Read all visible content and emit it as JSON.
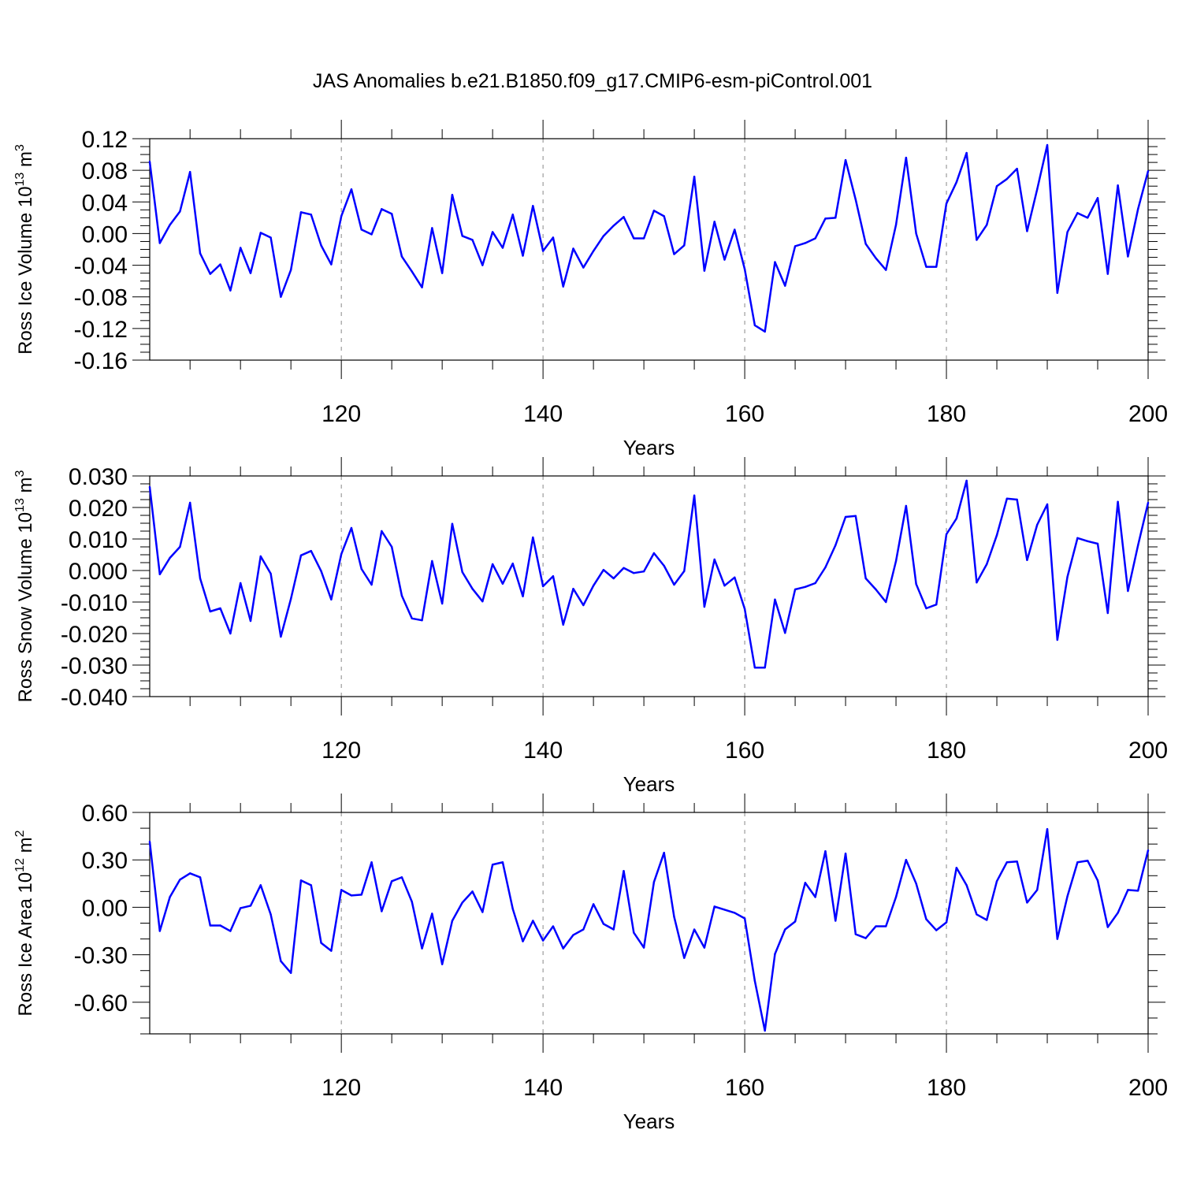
{
  "title": "JAS Anomalies b.e21.B1850.f09_g17.CMIP6-esm-piControl.001",
  "chart_data": [
    {
      "type": "line",
      "ylabel_text": "Ross Ice Volume 10",
      "ylabel_exp": "13",
      "ylabel_unit": " m",
      "ylabel_unit_exp": "3",
      "xlabel": "Years",
      "xlim": [
        101,
        200
      ],
      "ylim": [
        -0.16,
        0.12
      ],
      "yticks": [
        -0.16,
        -0.12,
        -0.08,
        -0.04,
        0.0,
        0.04,
        0.08,
        0.12
      ],
      "ytick_labels": [
        "-0.16",
        "-0.12",
        "-0.08",
        "-0.04",
        "0.00",
        "0.04",
        "0.08",
        "0.12"
      ],
      "yminor_step": 0.01,
      "xticks": [
        120,
        140,
        160,
        180,
        200
      ],
      "xtick_labels": [
        "120",
        "140",
        "160",
        "180",
        "200"
      ],
      "xminor_step": 5,
      "grid_x": true,
      "x_start": 101,
      "values": [
        0.091,
        -0.012,
        0.011,
        0.028,
        0.078,
        -0.025,
        -0.051,
        -0.039,
        -0.072,
        -0.018,
        -0.05,
        0.001,
        -0.005,
        -0.08,
        -0.046,
        0.027,
        0.024,
        -0.015,
        -0.039,
        0.022,
        0.056,
        0.005,
        -0.001,
        0.031,
        0.025,
        -0.029,
        -0.048,
        -0.068,
        0.007,
        -0.05,
        0.049,
        -0.003,
        -0.008,
        -0.04,
        0.002,
        -0.018,
        0.024,
        -0.028,
        0.035,
        -0.022,
        -0.005,
        -0.067,
        -0.019,
        -0.043,
        -0.022,
        -0.003,
        0.01,
        0.021,
        -0.006,
        -0.006,
        0.029,
        0.022,
        -0.026,
        -0.015,
        0.072,
        -0.047,
        0.015,
        -0.033,
        0.005,
        -0.045,
        -0.116,
        -0.124,
        -0.036,
        -0.066,
        -0.016,
        -0.012,
        -0.006,
        0.019,
        0.02,
        0.093,
        0.043,
        -0.013,
        -0.031,
        -0.046,
        0.011,
        0.096,
        0.0,
        -0.042,
        -0.042,
        0.038,
        0.065,
        0.102,
        -0.008,
        0.011,
        0.06,
        0.069,
        0.082,
        0.003,
        0.056,
        0.112,
        -0.075,
        0.002,
        0.026,
        0.02,
        0.045,
        -0.051,
        0.061,
        -0.029,
        0.031,
        0.079
      ]
    },
    {
      "type": "line",
      "ylabel_text": "Ross Snow Volume 10",
      "ylabel_exp": "13",
      "ylabel_unit": " m",
      "ylabel_unit_exp": "3",
      "xlabel": "Years",
      "xlim": [
        101,
        200
      ],
      "ylim": [
        -0.04,
        0.03
      ],
      "yticks": [
        -0.04,
        -0.03,
        -0.02,
        -0.01,
        0.0,
        0.01,
        0.02,
        0.03
      ],
      "ytick_labels": [
        "-0.040",
        "-0.030",
        "-0.020",
        "-0.010",
        "0.000",
        "0.010",
        "0.020",
        "0.030"
      ],
      "yminor_step": 0.0025,
      "xticks": [
        120,
        140,
        160,
        180,
        200
      ],
      "xtick_labels": [
        "120",
        "140",
        "160",
        "180",
        "200"
      ],
      "xminor_step": 5,
      "grid_x": true,
      "x_start": 101,
      "values": [
        0.0265,
        -0.0012,
        0.004,
        0.0075,
        0.0215,
        -0.0025,
        -0.013,
        -0.012,
        -0.02,
        -0.004,
        -0.016,
        0.0045,
        -0.001,
        -0.021,
        -0.009,
        0.0048,
        0.0062,
        -0.0002,
        -0.0092,
        0.0052,
        0.0135,
        0.0005,
        -0.0045,
        0.0125,
        0.0075,
        -0.008,
        -0.0152,
        -0.0158,
        0.003,
        -0.0105,
        0.0148,
        -0.0005,
        -0.0058,
        -0.0098,
        0.002,
        -0.0042,
        0.0022,
        -0.0082,
        0.0105,
        -0.005,
        -0.0018,
        -0.0172,
        -0.0058,
        -0.011,
        -0.0048,
        0.0002,
        -0.0025,
        0.0008,
        -0.0008,
        -0.0003,
        0.0055,
        0.0015,
        -0.0045,
        -0.0002,
        0.0238,
        -0.0115,
        0.0035,
        -0.0048,
        -0.0022,
        -0.0122,
        -0.0308,
        -0.0308,
        -0.0092,
        -0.0198,
        -0.006,
        -0.0052,
        -0.004,
        0.001,
        0.008,
        0.017,
        0.0173,
        -0.0025,
        -0.006,
        -0.01,
        0.003,
        0.0205,
        -0.0043,
        -0.012,
        -0.0108,
        0.0115,
        0.0165,
        0.0285,
        -0.0038,
        0.002,
        0.0112,
        0.0228,
        0.0225,
        0.0033,
        0.0145,
        0.021,
        -0.022,
        -0.002,
        0.0103,
        0.0093,
        0.0085,
        -0.0135,
        0.0218,
        -0.0065,
        0.008,
        0.0215
      ]
    },
    {
      "type": "line",
      "ylabel_text": "Ross Ice Area 10",
      "ylabel_exp": "12",
      "ylabel_unit": " m",
      "ylabel_unit_exp": "2",
      "xlabel": "Years",
      "xlim": [
        101,
        200
      ],
      "ylim": [
        -0.8,
        0.6
      ],
      "yticks": [
        -0.6,
        -0.3,
        0.0,
        0.3,
        0.6
      ],
      "ytick_labels": [
        "-0.60",
        "-0.30",
        "0.00",
        "0.30",
        "0.60"
      ],
      "yminor_step": 0.1,
      "xticks": [
        120,
        140,
        160,
        180,
        200
      ],
      "xtick_labels": [
        "120",
        "140",
        "160",
        "180",
        "200"
      ],
      "xminor_step": 5,
      "grid_x": true,
      "x_start": 101,
      "values": [
        0.415,
        -0.15,
        0.065,
        0.175,
        0.215,
        0.19,
        -0.115,
        -0.115,
        -0.15,
        -0.005,
        0.01,
        0.14,
        -0.045,
        -0.34,
        -0.415,
        0.17,
        0.14,
        -0.225,
        -0.275,
        0.11,
        0.075,
        0.08,
        0.285,
        -0.025,
        0.165,
        0.19,
        0.035,
        -0.26,
        -0.04,
        -0.36,
        -0.085,
        0.03,
        0.1,
        -0.03,
        0.27,
        0.285,
        -0.01,
        -0.215,
        -0.085,
        -0.21,
        -0.12,
        -0.26,
        -0.175,
        -0.14,
        0.02,
        -0.105,
        -0.14,
        0.23,
        -0.16,
        -0.255,
        0.16,
        0.345,
        -0.06,
        -0.32,
        -0.14,
        -0.255,
        0.005,
        -0.015,
        -0.035,
        -0.07,
        -0.465,
        -0.78,
        -0.295,
        -0.14,
        -0.09,
        0.155,
        0.065,
        0.355,
        -0.085,
        0.34,
        -0.17,
        -0.195,
        -0.12,
        -0.12,
        0.065,
        0.3,
        0.15,
        -0.075,
        -0.145,
        -0.095,
        0.25,
        0.14,
        -0.045,
        -0.08,
        0.165,
        0.285,
        0.29,
        0.03,
        0.11,
        0.495,
        -0.2,
        0.07,
        0.285,
        0.295,
        0.17,
        -0.125,
        -0.035,
        0.11,
        0.105,
        0.36
      ]
    }
  ]
}
